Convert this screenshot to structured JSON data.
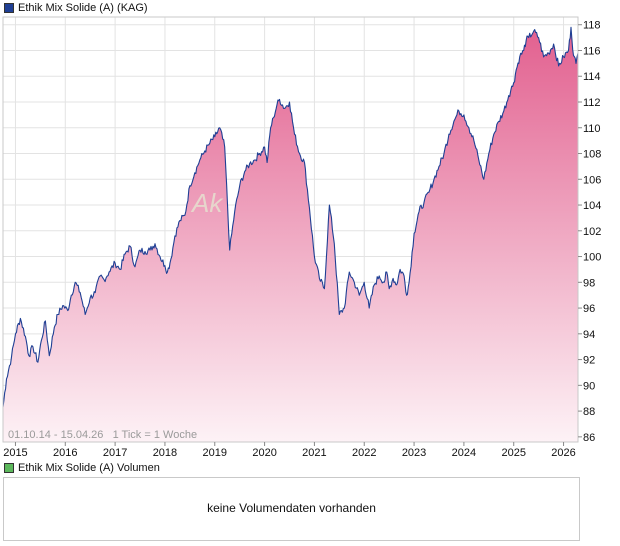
{
  "legend": {
    "main_label": "Ethik Mix Solide (A) (KAG)",
    "main_color": "#1f3f94",
    "volume_label": "Ethik Mix Solide (A) Volumen",
    "volume_color": "#5cb85c"
  },
  "info_text": "01.10.14 - 15.04.26   1 Tick = 1 Woche",
  "watermark": "Ak",
  "volume_message": "keine Volumendaten vorhanden",
  "colors": {
    "line": "#1f3f94",
    "fill_top": "#e2608f",
    "fill_bottom": "#fdf2f6",
    "grid": "#e3e3e3",
    "frame": "#c9c9c9"
  },
  "chart_data": {
    "type": "area",
    "title": "",
    "xlabel": "",
    "ylabel": "",
    "y_axis_side": "right",
    "grid": true,
    "xlim": [
      2014.75,
      2026.29
    ],
    "ylim": [
      85.6,
      118.6
    ],
    "y_ticks": [
      86,
      88,
      90,
      92,
      94,
      96,
      98,
      100,
      102,
      104,
      106,
      108,
      110,
      112,
      114,
      116,
      118
    ],
    "x_ticks": [
      {
        "value": 2015,
        "label": "2015"
      },
      {
        "value": 2016,
        "label": "2016"
      },
      {
        "value": 2017,
        "label": "2017"
      },
      {
        "value": 2018,
        "label": "2018"
      },
      {
        "value": 2019,
        "label": "2019"
      },
      {
        "value": 2020,
        "label": "2020"
      },
      {
        "value": 2021,
        "label": "2021"
      },
      {
        "value": 2022,
        "label": "2022"
      },
      {
        "value": 2023,
        "label": "2023"
      },
      {
        "value": 2024,
        "label": "2024"
      },
      {
        "value": 2025,
        "label": "2025"
      },
      {
        "value": 2026,
        "label": "2026"
      }
    ],
    "series": [
      {
        "x": [
          2014.75,
          2014.82,
          2014.92,
          2015.0,
          2015.1,
          2015.2,
          2015.27,
          2015.35,
          2015.45,
          2015.52,
          2015.6,
          2015.68,
          2015.78,
          2015.85,
          2015.95,
          2016.05,
          2016.12,
          2016.2,
          2016.3,
          2016.4,
          2016.5,
          2016.6,
          2016.7,
          2016.78,
          2016.88,
          2017.0,
          2017.1,
          2017.2,
          2017.3,
          2017.4,
          2017.5,
          2017.6,
          2017.7,
          2017.8,
          2017.9,
          2018.0,
          2018.05,
          2018.12,
          2018.2,
          2018.3,
          2018.4,
          2018.5,
          2018.6,
          2018.7,
          2018.8,
          2018.9,
          2019.0,
          2019.1,
          2019.2,
          2019.3,
          2019.4,
          2019.5,
          2019.6,
          2019.7,
          2019.8,
          2019.9,
          2020.0,
          2020.05,
          2020.12,
          2020.18,
          2020.25,
          2020.3,
          2020.4,
          2020.5,
          2020.6,
          2020.7,
          2020.8,
          2020.9,
          2021.0,
          2021.1,
          2021.2,
          2021.3,
          2021.4,
          2021.5,
          2021.6,
          2021.7,
          2021.8,
          2021.9,
          2022.0,
          2022.1,
          2022.2,
          2022.3,
          2022.4,
          2022.45,
          2022.5,
          2022.58,
          2022.65,
          2022.72,
          2022.8,
          2022.85,
          2022.9,
          2023.0,
          2023.1,
          2023.2,
          2023.3,
          2023.4,
          2023.5,
          2023.6,
          2023.7,
          2023.8,
          2023.9,
          2024.0,
          2024.1,
          2024.2,
          2024.3,
          2024.4,
          2024.5,
          2024.6,
          2024.7,
          2024.8,
          2024.9,
          2025.0,
          2025.05,
          2025.12,
          2025.2,
          2025.25,
          2025.3,
          2025.4,
          2025.5,
          2025.6,
          2025.7,
          2025.8,
          2025.9,
          2026.0,
          2026.1,
          2026.15,
          2026.2,
          2026.25,
          2026.29
        ],
        "values": [
          88.3,
          90.5,
          92.2,
          94.0,
          95.2,
          93.8,
          92.3,
          93.0,
          91.8,
          93.5,
          95.0,
          92.3,
          94.5,
          95.5,
          96.2,
          95.8,
          97.0,
          98.0,
          97.2,
          95.5,
          96.8,
          97.2,
          98.5,
          98.2,
          98.8,
          99.5,
          99.0,
          100.2,
          100.8,
          99.2,
          100.5,
          100.4,
          100.5,
          101.0,
          100.0,
          99.3,
          98.8,
          99.8,
          101.6,
          102.8,
          103.2,
          105.5,
          106.5,
          107.5,
          108.2,
          108.8,
          109.3,
          110.0,
          108.5,
          100.5,
          103.5,
          105.5,
          106.6,
          107.2,
          107.5,
          108.0,
          108.5,
          107.3,
          110.0,
          110.8,
          111.8,
          112.2,
          111.5,
          112.0,
          109.5,
          108.0,
          107.3,
          103.8,
          100.0,
          98.3,
          97.5,
          104.0,
          101.0,
          95.5,
          96.0,
          98.8,
          98.0,
          97.0,
          98.0,
          96.0,
          97.8,
          98.5,
          98.0,
          98.8,
          97.5,
          98.3,
          97.8,
          99.0,
          98.5,
          97.0,
          98.0,
          101.8,
          103.5,
          104.2,
          105.0,
          106.0,
          107.0,
          108.0,
          109.5,
          110.5,
          111.3,
          111.0,
          110.0,
          109.0,
          107.5,
          106.0,
          108.0,
          109.5,
          110.5,
          111.3,
          112.5,
          113.5,
          114.5,
          115.5,
          116.0,
          116.8,
          117.0,
          117.5,
          117.0,
          115.5,
          115.8,
          116.5,
          114.8,
          115.5,
          116.0,
          117.8,
          115.6,
          115.0,
          115.8
        ]
      }
    ]
  }
}
